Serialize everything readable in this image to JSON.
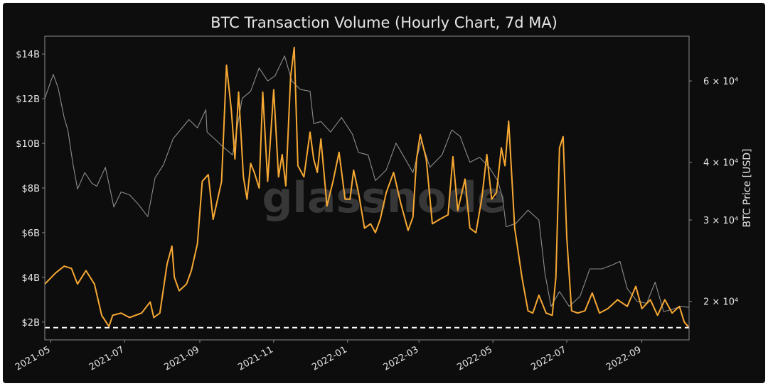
{
  "chart_data": {
    "type": "line",
    "title": "BTC Transaction Volume (Hourly Chart, 7d MA)",
    "watermark": "glassnode",
    "xlabel": "",
    "ylabel_left": "",
    "ylabel_right": "BTC Price [USD]",
    "x_range": [
      "2021-04-26",
      "2022-10-10"
    ],
    "y_left": {
      "range": [
        1.2,
        14.8
      ],
      "ticks": [
        2,
        4,
        6,
        8,
        10,
        12,
        14
      ],
      "tick_labels": [
        "$2B",
        "$4B",
        "$6B",
        "$8B",
        "$10B",
        "$12B",
        "$14B"
      ]
    },
    "y_right": {
      "scale": "log",
      "range": [
        16500,
        75000
      ],
      "ticks": [
        20000,
        30000,
        40000,
        60000
      ],
      "tick_labels": [
        "2 × 10⁴",
        "3 × 10⁴",
        "4 × 10⁴",
        "6 × 10⁴"
      ]
    },
    "x_ticks": [
      "2021-05-01",
      "2021-07-01",
      "2021-09-01",
      "2021-11-01",
      "2022-01-01",
      "2022-03-01",
      "2022-05-01",
      "2022-07-01",
      "2022-09-01"
    ],
    "x_tick_labels": [
      "2021-05",
      "2021-07",
      "2021-09",
      "2021-11",
      "2022-01",
      "2022-03",
      "2022-05",
      "2022-07",
      "2022-09"
    ],
    "reference_line": {
      "axis": "left",
      "value": 1.75,
      "style": "dashed"
    },
    "grid": false,
    "colors": {
      "volume": "#f7a833",
      "price": "#8c8c8c",
      "background": "#0d0d0d",
      "text": "#e6e6e6",
      "ref_line": "#ffffff"
    },
    "series": [
      {
        "axis": "left",
        "color": "#f7a833",
        "x": [
          "2021-04-26",
          "2021-05-05",
          "2021-05-12",
          "2021-05-18",
          "2021-05-23",
          "2021-05-30",
          "2021-06-06",
          "2021-06-12",
          "2021-06-18",
          "2021-06-21",
          "2021-06-28",
          "2021-07-05",
          "2021-07-15",
          "2021-07-22",
          "2021-07-25",
          "2021-07-30",
          "2021-08-05",
          "2021-08-09",
          "2021-08-11",
          "2021-08-15",
          "2021-08-21",
          "2021-08-25",
          "2021-08-30",
          "2021-09-03",
          "2021-09-08",
          "2021-09-12",
          "2021-09-19",
          "2021-09-23",
          "2021-09-27",
          "2021-09-30",
          "2021-10-03",
          "2021-10-07",
          "2021-10-10",
          "2021-10-13",
          "2021-10-16",
          "2021-10-20",
          "2021-10-23",
          "2021-10-27",
          "2021-11-01",
          "2021-11-05",
          "2021-11-08",
          "2021-11-11",
          "2021-11-15",
          "2021-11-18",
          "2021-11-21",
          "2021-11-26",
          "2021-12-01",
          "2021-12-04",
          "2021-12-07",
          "2021-12-10",
          "2021-12-15",
          "2021-12-20",
          "2021-12-25",
          "2021-12-30",
          "2022-01-03",
          "2022-01-06",
          "2022-01-10",
          "2022-01-15",
          "2022-01-20",
          "2022-01-24",
          "2022-01-28",
          "2022-02-02",
          "2022-02-08",
          "2022-02-14",
          "2022-02-20",
          "2022-02-24",
          "2022-02-27",
          "2022-03-02",
          "2022-03-07",
          "2022-03-12",
          "2022-03-18",
          "2022-03-25",
          "2022-03-29",
          "2022-04-02",
          "2022-04-08",
          "2022-04-12",
          "2022-04-17",
          "2022-04-22",
          "2022-04-26",
          "2022-04-30",
          "2022-05-04",
          "2022-05-08",
          "2022-05-11",
          "2022-05-14",
          "2022-05-19",
          "2022-05-25",
          "2022-05-30",
          "2022-06-03",
          "2022-06-08",
          "2022-06-14",
          "2022-06-19",
          "2022-06-22",
          "2022-06-25",
          "2022-06-28",
          "2022-07-01",
          "2022-07-05",
          "2022-07-10",
          "2022-07-16",
          "2022-07-22",
          "2022-07-28",
          "2022-08-04",
          "2022-08-12",
          "2022-08-20",
          "2022-08-27",
          "2022-09-01",
          "2022-09-08",
          "2022-09-14",
          "2022-09-20",
          "2022-09-26",
          "2022-10-02",
          "2022-10-06",
          "2022-10-10"
        ],
        "values": [
          3.7,
          4.2,
          4.5,
          4.4,
          3.7,
          4.3,
          3.7,
          2.3,
          1.8,
          2.3,
          2.4,
          2.2,
          2.4,
          2.9,
          2.2,
          2.4,
          4.6,
          5.4,
          4.0,
          3.4,
          3.7,
          4.3,
          5.5,
          8.3,
          8.6,
          6.6,
          8.3,
          13.5,
          11.5,
          9.3,
          12.3,
          8.5,
          7.5,
          9.1,
          8.7,
          8.0,
          12.3,
          8.3,
          12.4,
          8.5,
          9.5,
          8.1,
          13.0,
          14.3,
          9.0,
          8.5,
          10.5,
          9.3,
          8.7,
          10.2,
          7.2,
          8.3,
          9.6,
          7.5,
          7.5,
          8.8,
          7.8,
          6.2,
          6.4,
          6.0,
          6.6,
          7.8,
          8.7,
          7.3,
          6.1,
          6.7,
          9.3,
          10.4,
          9.3,
          6.4,
          6.6,
          6.8,
          9.4,
          7.0,
          8.4,
          6.2,
          6.0,
          7.6,
          9.5,
          7.5,
          7.8,
          9.8,
          9.0,
          11.0,
          6.2,
          4.0,
          2.5,
          2.4,
          3.2,
          2.4,
          2.3,
          4.0,
          9.8,
          10.3,
          5.8,
          2.5,
          2.4,
          2.5,
          3.3,
          2.4,
          2.6,
          3.0,
          2.7,
          3.6,
          2.6,
          3.0,
          2.3,
          3.0,
          2.4,
          2.7,
          2.0,
          1.75
        ]
      },
      {
        "axis": "right",
        "color": "#8c8c8c",
        "x": [
          "2021-04-26",
          "2021-05-03",
          "2021-05-07",
          "2021-05-12",
          "2021-05-15",
          "2021-05-19",
          "2021-05-23",
          "2021-05-29",
          "2021-06-04",
          "2021-06-08",
          "2021-06-15",
          "2021-06-22",
          "2021-06-28",
          "2021-07-05",
          "2021-07-12",
          "2021-07-20",
          "2021-07-26",
          "2021-08-02",
          "2021-08-10",
          "2021-08-16",
          "2021-08-23",
          "2021-08-30",
          "2021-09-06",
          "2021-09-07",
          "2021-09-13",
          "2021-09-21",
          "2021-09-28",
          "2021-10-06",
          "2021-10-13",
          "2021-10-20",
          "2021-10-27",
          "2021-11-02",
          "2021-11-10",
          "2021-11-16",
          "2021-11-23",
          "2021-12-01",
          "2021-12-04",
          "2021-12-10",
          "2021-12-18",
          "2021-12-27",
          "2022-01-05",
          "2022-01-10",
          "2022-01-18",
          "2022-01-24",
          "2022-02-02",
          "2022-02-10",
          "2022-02-18",
          "2022-02-24",
          "2022-03-03",
          "2022-03-10",
          "2022-03-20",
          "2022-03-28",
          "2022-04-04",
          "2022-04-12",
          "2022-04-20",
          "2022-04-28",
          "2022-05-05",
          "2022-05-09",
          "2022-05-12",
          "2022-05-20",
          "2022-05-30",
          "2022-06-08",
          "2022-06-13",
          "2022-06-18",
          "2022-06-25",
          "2022-07-03",
          "2022-07-12",
          "2022-07-20",
          "2022-07-30",
          "2022-08-08",
          "2022-08-14",
          "2022-08-20",
          "2022-08-28",
          "2022-09-05",
          "2022-09-12",
          "2022-09-19",
          "2022-09-26",
          "2022-10-03",
          "2022-10-10"
        ],
        "values": [
          55000,
          62000,
          58000,
          50000,
          47000,
          40000,
          35000,
          38000,
          36000,
          35500,
          39000,
          32000,
          34500,
          34000,
          32500,
          30500,
          37000,
          39500,
          45000,
          47000,
          49500,
          47500,
          52000,
          46500,
          45000,
          43000,
          41500,
          55000,
          57000,
          64000,
          60000,
          61500,
          68000,
          60000,
          57500,
          57000,
          48500,
          49000,
          46500,
          50000,
          46000,
          42000,
          41500,
          36500,
          38500,
          44000,
          40500,
          38000,
          44500,
          39000,
          41500,
          47000,
          45500,
          40000,
          41000,
          39000,
          36500,
          33500,
          29000,
          29500,
          31500,
          30000,
          23000,
          19500,
          21000,
          19500,
          20500,
          23500,
          23500,
          24000,
          24400,
          21300,
          20000,
          19800,
          22000,
          19000,
          19200,
          19500,
          19400
        ]
      }
    ]
  }
}
